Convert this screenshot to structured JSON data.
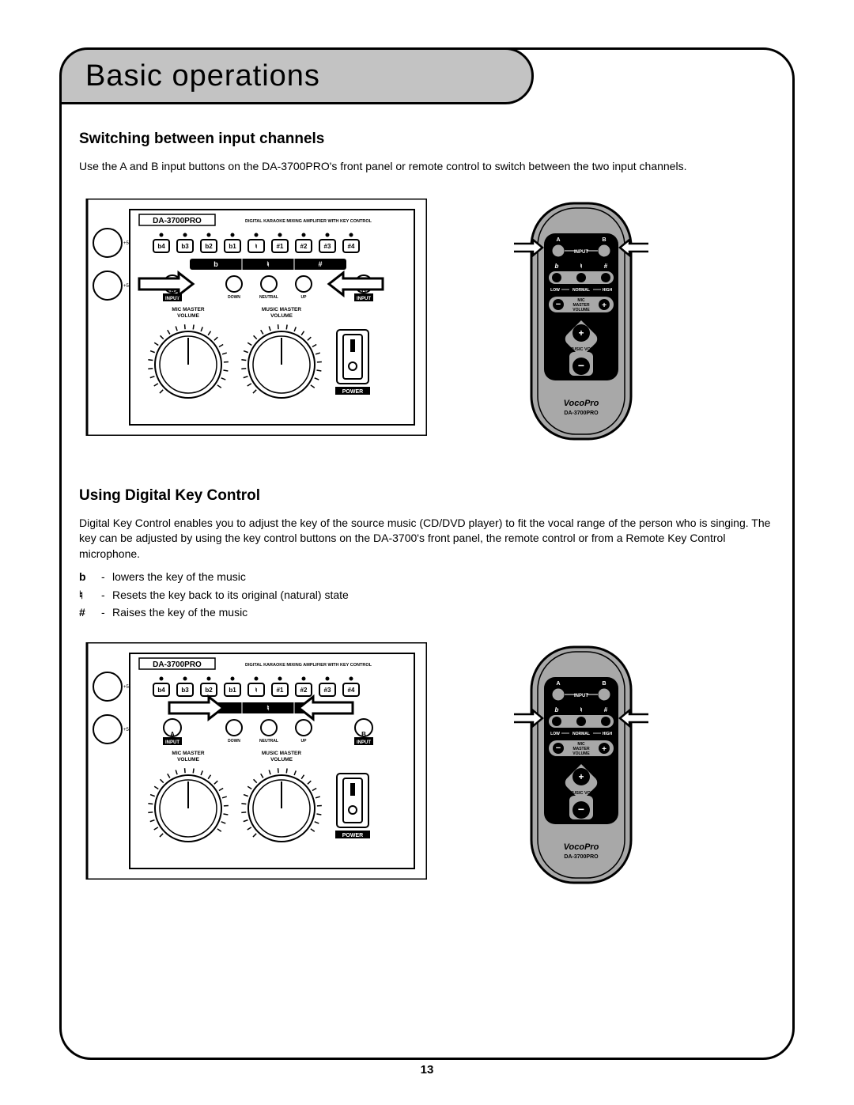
{
  "page": {
    "title": "Basic operations",
    "number": "13"
  },
  "section1": {
    "heading": "Switching between input channels",
    "text": "Use the A and B input buttons on the DA-3700PRO's front panel or remote control to switch between the two input channels."
  },
  "section2": {
    "heading": "Using Digital Key Control",
    "text": "Digital Key Control enables you to adjust the key of the source music (CD/DVD player) to fit the vocal range of the person who is singing.  The key can be adjusted by using the key control buttons on the DA-3700's front panel, the remote control or from a Remote Key Control microphone.",
    "legend": [
      {
        "sym": "b",
        "desc": "lowers the key of the music"
      },
      {
        "sym": "♮",
        "desc": "Resets the key back to its original (natural) state"
      },
      {
        "sym": "#",
        "desc": "Raises the key of the music"
      }
    ]
  },
  "panel": {
    "model": "DA-3700PRO",
    "subtitle": "DIGITAL KARAOKE MIXING AMPLIFIER WITH KEY CONTROL",
    "keys": [
      "b4",
      "b3",
      "b2",
      "b1",
      "♮",
      "#1",
      "#2",
      "#3",
      "#4"
    ],
    "key_bar": [
      "b",
      "♮",
      "#"
    ],
    "input_a": "A",
    "input_b": "B",
    "input_label": "INPUT",
    "down": "DOWN",
    "neutral": "NEUTRAL",
    "up": "UP",
    "mic_master": "MIC MASTER",
    "music_master": "MUSIC MASTER",
    "volume": "VOLUME",
    "power": "POWER",
    "plus5": "+5"
  },
  "remote": {
    "a": "A",
    "b": "B",
    "input": "INPUT",
    "flat": "b",
    "natural": "♮",
    "sharp": "#",
    "low": "LOW",
    "normal": "NORMAL",
    "high": "HIGH",
    "mic_master": "MIC",
    "mic_master2": "MASTER",
    "mic_master3": "VOLUME",
    "minus": "−",
    "plus": "+",
    "music_vol": "MUSIC VOL",
    "brand": "VocoPro",
    "model": "DA-3700PRO"
  },
  "colors": {
    "bg": "#ffffff",
    "line": "#000000",
    "tab_fill": "#c3c3c3",
    "remote_body": "#a8a8a8",
    "remote_dark": "#000000"
  }
}
